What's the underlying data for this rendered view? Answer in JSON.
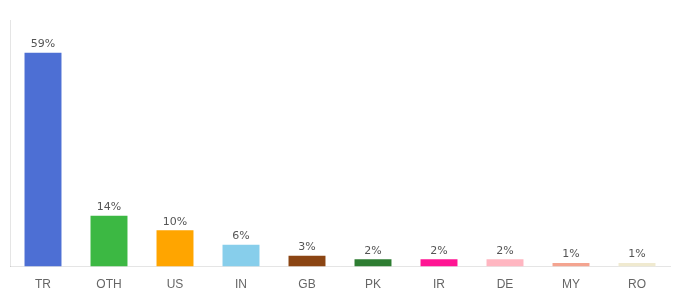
{
  "chart_data": {
    "type": "bar",
    "categories": [
      "TR",
      "OTH",
      "US",
      "IN",
      "GB",
      "PK",
      "IR",
      "DE",
      "MY",
      "RO"
    ],
    "values": [
      59,
      14,
      10,
      6,
      3,
      2,
      2,
      2,
      1,
      1
    ],
    "value_labels": [
      "59%",
      "14%",
      "10%",
      "6%",
      "3%",
      "2%",
      "2%",
      "2%",
      "1%",
      "1%"
    ],
    "data_labels": true,
    "colors": [
      "#4d6fd4",
      "#3cb843",
      "#ffa500",
      "#87ceeb",
      "#8b4513",
      "#2e7d32",
      "#ff1493",
      "#ffb6c1",
      "#f4a490",
      "#f0ead0"
    ],
    "ylim": [
      0,
      68
    ],
    "tick_labels": "x",
    "grid": false
  }
}
